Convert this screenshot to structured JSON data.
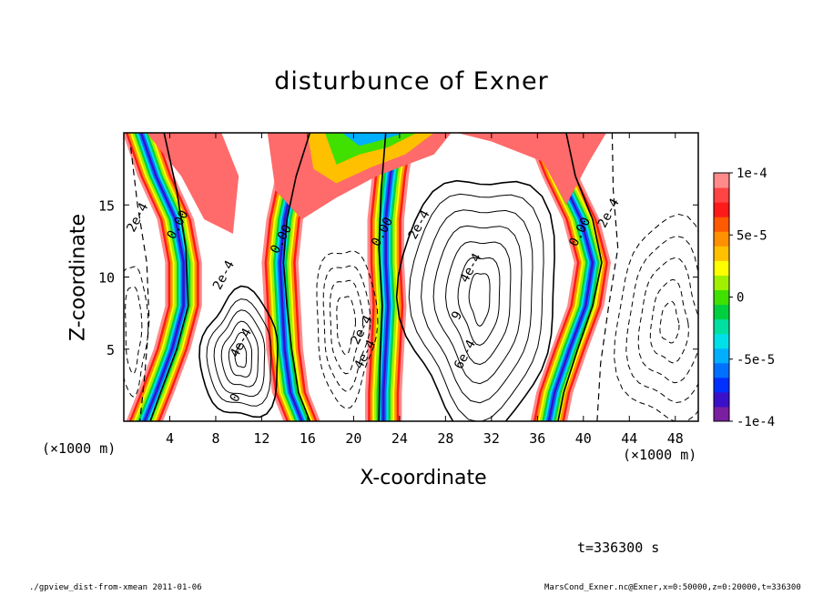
{
  "chart_data": {
    "type": "heatmap",
    "title": "disturbunce of Exner",
    "xlabel": "X-coordinate",
    "ylabel": "Z-coordinate",
    "x_unit": "(×1000 m)",
    "y_unit": "(×1000 m)",
    "xlim": [
      0,
      50
    ],
    "ylim": [
      0,
      20
    ],
    "x_ticks": [
      4,
      8,
      12,
      16,
      20,
      24,
      28,
      32,
      36,
      40,
      44,
      48
    ],
    "y_ticks": [
      5,
      10,
      15
    ],
    "colorbar": {
      "range": [
        -0.0001,
        0.0001
      ],
      "tick_values": [
        0.0001,
        5e-05,
        0,
        -5e-05,
        -0.0001
      ],
      "tick_labels": [
        "1e-4",
        "5e-5",
        "0",
        "-5e-5",
        "-1e-4"
      ],
      "colors": [
        "#7a1fa0",
        "#3a10c8",
        "#0030ff",
        "#0070ff",
        "#00b0ff",
        "#00e0e8",
        "#00e0a0",
        "#00d040",
        "#40e000",
        "#a0f000",
        "#ffff00",
        "#ffc000",
        "#ff9000",
        "#ff5a00",
        "#ff1a1a",
        "#ff4444",
        "#ff8a8a"
      ]
    },
    "contour_labels": [
      {
        "text": "2e-4",
        "x": 1.5,
        "z": 14.0
      },
      {
        "text": "0.00",
        "x": 5.0,
        "z": 13.5
      },
      {
        "text": "2e-4",
        "x": 9.0,
        "z": 10.0
      },
      {
        "text": "4e-4",
        "x": 10.5,
        "z": 5.3
      },
      {
        "text": "0",
        "x": 10.0,
        "z": 1.5
      },
      {
        "text": "0.00",
        "x": 14.0,
        "z": 12.5
      },
      {
        "text": "2e-4",
        "x": 21.0,
        "z": 6.2
      },
      {
        "text": "4e-4",
        "x": 21.3,
        "z": 4.5
      },
      {
        "text": "0.00",
        "x": 22.8,
        "z": 13.0
      },
      {
        "text": "2e-4",
        "x": 26.0,
        "z": 13.5
      },
      {
        "text": "4e-4",
        "x": 30.5,
        "z": 10.5
      },
      {
        "text": "6e-4",
        "x": 30.0,
        "z": 4.5
      },
      {
        "text": "9",
        "x": 29.3,
        "z": 7.2
      },
      {
        "text": "0.00",
        "x": 40.0,
        "z": 13.0
      },
      {
        "text": "2e-4",
        "x": 42.5,
        "z": 14.3
      }
    ],
    "time_label": "t=336300 s"
  },
  "footer": {
    "left": "./gpview_dist-from-xmean  2011-01-06",
    "right": "MarsCond_Exner.nc@Exner,x=0:50000,z=0:20000,t=336300"
  }
}
